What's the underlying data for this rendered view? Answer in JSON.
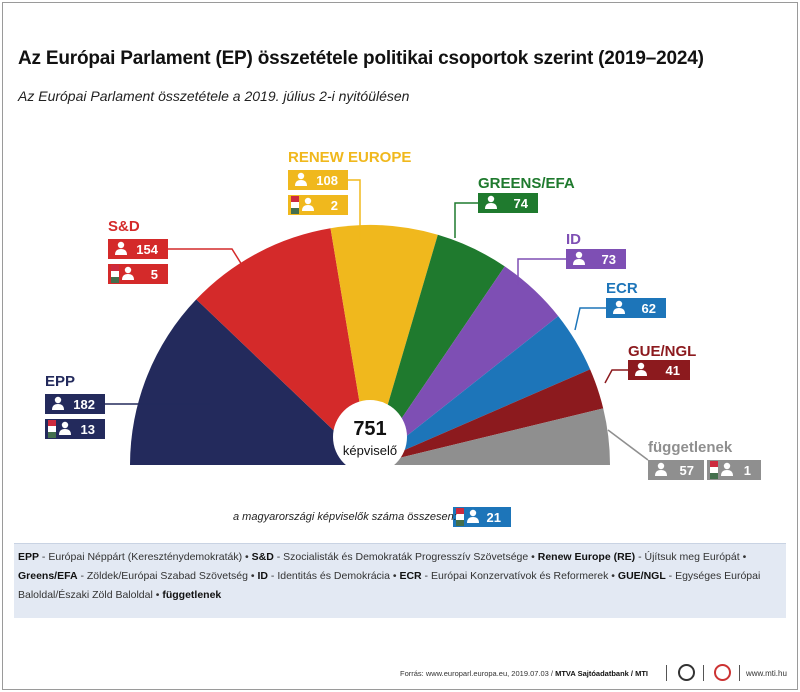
{
  "title": "Az Európai Parlament (EP) összetétele politikai csoportok szerint (2019–2024)",
  "subtitle": "Az Európai Parlament összetétele a 2019. július 2-i nyitóülésen",
  "center": {
    "value": "751",
    "label": "képviselő"
  },
  "chart_data": {
    "type": "pie",
    "total": 751,
    "slices": [
      {
        "name": "EPP",
        "value": 182,
        "hu": 13,
        "color": "#232a5c"
      },
      {
        "name": "S&D",
        "value": 154,
        "hu": 5,
        "color": "#d42a2a"
      },
      {
        "name": "RENEW EUROPE",
        "value": 108,
        "hu": 2,
        "color": "#f0b81d"
      },
      {
        "name": "GREENS/EFA",
        "value": 74,
        "color": "#1f7a2e"
      },
      {
        "name": "ID",
        "value": 73,
        "color": "#7e4fb4"
      },
      {
        "name": "ECR",
        "value": 62,
        "color": "#1d75b9"
      },
      {
        "name": "GUE/NGL",
        "value": 41,
        "color": "#8c1a1e"
      },
      {
        "name": "függetlenek",
        "value": 57,
        "hu": 1,
        "color": "#8f8f8f"
      }
    ],
    "hungary_total": 21,
    "hungary_label": "a magyarországi képviselők száma összesen:",
    "hungary_badge_color": "#1d75b9"
  },
  "legend_items": [
    {
      "abbr": "EPP",
      "desc": " - Európai Néppárt (Kereszténydemokraták)"
    },
    {
      "abbr": "S&D",
      "desc": " - Szocialisták és Demokraták Progresszív Szövetsége"
    },
    {
      "abbr": "Renew Europe (RE)",
      "desc": " - Újítsuk meg Európát"
    },
    {
      "abbr": "Greens/EFA",
      "desc": " - Zöldek/Európai Szabad Szövetség"
    },
    {
      "abbr": "ID",
      "desc": " - Identitás és Demokrácia"
    },
    {
      "abbr": "ECR",
      "desc": " - Európai Konzervatívok és Reformerek"
    },
    {
      "abbr": "GUE/NGL",
      "desc": " - Egységes Európai Baloldal/Északi Zöld Baloldal"
    },
    {
      "abbr": "függetlenek",
      "desc": ""
    }
  ],
  "footer": {
    "source": "Forrás: www.europarl.europa.eu, 2019.07.03 / ",
    "credit": "MTVA Sajtóadatbank / MTI",
    "site": "www.mti.hu"
  }
}
